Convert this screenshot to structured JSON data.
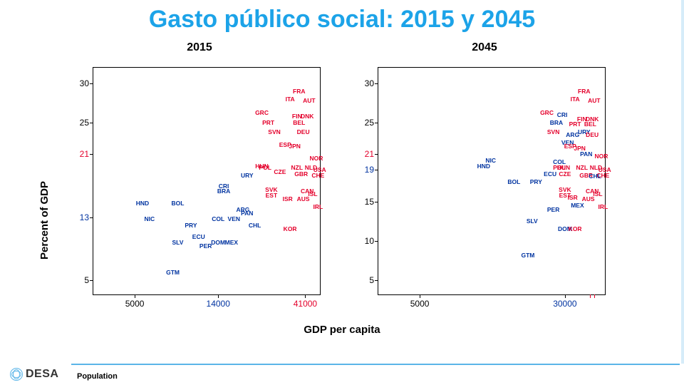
{
  "title": {
    "text": "Gasto público social: 2015 y 2045",
    "color": "#1ca3e8",
    "fontsize": 34
  },
  "axis": {
    "ylabel": "Percent of GDP",
    "xlabel": "GDP per capita",
    "ylabel_fontsize": 15,
    "xlabel_fontsize": 15
  },
  "colors": {
    "red": "#e4002b",
    "blue": "#0033a0",
    "border": "#000000",
    "accent": "#5bb5e8"
  },
  "panels": [
    {
      "title": "2015",
      "ylim": [
        3,
        32
      ],
      "xlim": [
        3000,
        50000
      ],
      "yticks": [
        {
          "v": 5,
          "label": "5",
          "color": "black"
        },
        {
          "v": 13,
          "label": "13",
          "color": "blue"
        },
        {
          "v": 21,
          "label": "21",
          "color": "red"
        },
        {
          "v": 25,
          "label": "25",
          "color": "black"
        },
        {
          "v": 30,
          "label": "30",
          "color": "black"
        }
      ],
      "xticks": [
        {
          "v": 5000,
          "label": "5000",
          "color": "black"
        },
        {
          "v": 14000,
          "label": "14000",
          "color": "blue"
        },
        {
          "v": 41000,
          "label": "41000",
          "color": "red"
        }
      ],
      "points": [
        {
          "l": "FRA",
          "x": 38000,
          "y": 29.0,
          "c": "red"
        },
        {
          "l": "ITA",
          "x": 34000,
          "y": 28.0,
          "c": "red"
        },
        {
          "l": "AUT",
          "x": 43000,
          "y": 27.8,
          "c": "red"
        },
        {
          "l": "GRC",
          "x": 24000,
          "y": 26.3,
          "c": "red"
        },
        {
          "l": "FIN",
          "x": 37000,
          "y": 25.8,
          "c": "red"
        },
        {
          "l": "DNK",
          "x": 42000,
          "y": 25.8,
          "c": "red"
        },
        {
          "l": "PRT",
          "x": 26000,
          "y": 25.0,
          "c": "red"
        },
        {
          "l": "BEL",
          "x": 38000,
          "y": 25.0,
          "c": "red"
        },
        {
          "l": "SVN",
          "x": 28000,
          "y": 23.8,
          "c": "red"
        },
        {
          "l": "DEU",
          "x": 40000,
          "y": 23.8,
          "c": "red"
        },
        {
          "l": "ESP",
          "x": 32000,
          "y": 22.2,
          "c": "red"
        },
        {
          "l": "JPN",
          "x": 36000,
          "y": 22.0,
          "c": "red"
        },
        {
          "l": "NOR",
          "x": 47000,
          "y": 20.5,
          "c": "red"
        },
        {
          "l": "HUN",
          "x": 24000,
          "y": 19.5,
          "c": "red"
        },
        {
          "l": "POL",
          "x": 25000,
          "y": 19.3,
          "c": "red"
        },
        {
          "l": "NZL",
          "x": 37000,
          "y": 19.3,
          "c": "red"
        },
        {
          "l": "NLD",
          "x": 44000,
          "y": 19.3,
          "c": "red"
        },
        {
          "l": "USA",
          "x": 49000,
          "y": 19.0,
          "c": "red"
        },
        {
          "l": "CZE",
          "x": 30000,
          "y": 18.8,
          "c": "red"
        },
        {
          "l": "GBR",
          "x": 39000,
          "y": 18.5,
          "c": "red"
        },
        {
          "l": "CHE",
          "x": 48000,
          "y": 18.3,
          "c": "red"
        },
        {
          "l": "URY",
          "x": 20000,
          "y": 18.3,
          "c": "blue"
        },
        {
          "l": "CRI",
          "x": 15000,
          "y": 17.0,
          "c": "blue"
        },
        {
          "l": "BRA",
          "x": 15000,
          "y": 16.3,
          "c": "blue"
        },
        {
          "l": "SVK",
          "x": 27000,
          "y": 16.5,
          "c": "red"
        },
        {
          "l": "EST",
          "x": 27000,
          "y": 15.8,
          "c": "red"
        },
        {
          "l": "CAN",
          "x": 42000,
          "y": 16.3,
          "c": "red"
        },
        {
          "l": "ISL",
          "x": 45000,
          "y": 16.0,
          "c": "red"
        },
        {
          "l": "ISR",
          "x": 33000,
          "y": 15.3,
          "c": "red"
        },
        {
          "l": "AUS",
          "x": 40000,
          "y": 15.3,
          "c": "red"
        },
        {
          "l": "HND",
          "x": 5500,
          "y": 14.8,
          "c": "blue"
        },
        {
          "l": "BOL",
          "x": 8500,
          "y": 14.8,
          "c": "blue"
        },
        {
          "l": "ARG",
          "x": 19000,
          "y": 14.0,
          "c": "blue"
        },
        {
          "l": "PAN",
          "x": 20000,
          "y": 13.5,
          "c": "blue"
        },
        {
          "l": "IRL",
          "x": 48000,
          "y": 14.3,
          "c": "red"
        },
        {
          "l": "NIC",
          "x": 6000,
          "y": 12.8,
          "c": "blue"
        },
        {
          "l": "COL",
          "x": 14000,
          "y": 12.8,
          "c": "blue"
        },
        {
          "l": "VEN",
          "x": 17000,
          "y": 12.8,
          "c": "blue"
        },
        {
          "l": "PRY",
          "x": 10000,
          "y": 12.0,
          "c": "blue"
        },
        {
          "l": "CHL",
          "x": 22000,
          "y": 12.0,
          "c": "blue"
        },
        {
          "l": "KOR",
          "x": 34000,
          "y": 11.5,
          "c": "red"
        },
        {
          "l": "ECU",
          "x": 11000,
          "y": 10.5,
          "c": "blue"
        },
        {
          "l": "SLV",
          "x": 8500,
          "y": 9.8,
          "c": "blue"
        },
        {
          "l": "DOM",
          "x": 14000,
          "y": 9.8,
          "c": "blue"
        },
        {
          "l": "MEX",
          "x": 16500,
          "y": 9.8,
          "c": "blue"
        },
        {
          "l": "PER",
          "x": 12000,
          "y": 9.3,
          "c": "blue"
        },
        {
          "l": "GTM",
          "x": 8000,
          "y": 6.0,
          "c": "blue"
        }
      ]
    },
    {
      "title": "2045",
      "ylim": [
        3,
        32
      ],
      "xlim": [
        3000,
        50000
      ],
      "yticks": [
        {
          "v": 5,
          "label": "5",
          "color": "black"
        },
        {
          "v": 10,
          "label": "10",
          "color": "black"
        },
        {
          "v": 15,
          "label": "15",
          "color": "black"
        },
        {
          "v": 19,
          "label": "19",
          "color": "blue"
        },
        {
          "v": 21,
          "label": "21",
          "color": "red"
        },
        {
          "v": 25,
          "label": "25",
          "color": "black"
        },
        {
          "v": 30,
          "label": "30",
          "color": "black"
        }
      ],
      "xticks": [
        {
          "v": 5000,
          "label": "5000",
          "color": "black"
        },
        {
          "v": 30000,
          "label": "30000",
          "color": "blue"
        }
      ],
      "xticks_extra_marks": [
        41000,
        43000
      ],
      "points": [
        {
          "l": "FRA",
          "x": 38000,
          "y": 29.0,
          "c": "red"
        },
        {
          "l": "ITA",
          "x": 34000,
          "y": 28.0,
          "c": "red"
        },
        {
          "l": "AUT",
          "x": 43000,
          "y": 27.8,
          "c": "red"
        },
        {
          "l": "GRC",
          "x": 24000,
          "y": 26.3,
          "c": "red"
        },
        {
          "l": "CRI",
          "x": 29000,
          "y": 26.0,
          "c": "blue"
        },
        {
          "l": "FIN",
          "x": 37000,
          "y": 25.5,
          "c": "red"
        },
        {
          "l": "DNK",
          "x": 42000,
          "y": 25.5,
          "c": "red"
        },
        {
          "l": "BRA",
          "x": 27000,
          "y": 25.0,
          "c": "blue"
        },
        {
          "l": "PRT",
          "x": 34000,
          "y": 24.8,
          "c": "red"
        },
        {
          "l": "BEL",
          "x": 41000,
          "y": 24.8,
          "c": "red"
        },
        {
          "l": "SVN",
          "x": 26000,
          "y": 23.8,
          "c": "red"
        },
        {
          "l": "URY",
          "x": 38000,
          "y": 23.8,
          "c": "blue"
        },
        {
          "l": "DEU",
          "x": 42000,
          "y": 23.5,
          "c": "red"
        },
        {
          "l": "ARG",
          "x": 33000,
          "y": 23.5,
          "c": "blue"
        },
        {
          "l": "VEN",
          "x": 31000,
          "y": 22.5,
          "c": "blue"
        },
        {
          "l": "ESP",
          "x": 32000,
          "y": 22.0,
          "c": "red"
        },
        {
          "l": "JPN",
          "x": 36000,
          "y": 21.8,
          "c": "red"
        },
        {
          "l": "PAN",
          "x": 39000,
          "y": 21.0,
          "c": "blue"
        },
        {
          "l": "NOR",
          "x": 47000,
          "y": 20.8,
          "c": "red"
        },
        {
          "l": "NIC",
          "x": 12000,
          "y": 20.2,
          "c": "blue"
        },
        {
          "l": "COL",
          "x": 28000,
          "y": 20.0,
          "c": "blue"
        },
        {
          "l": "HND",
          "x": 11000,
          "y": 19.5,
          "c": "blue"
        },
        {
          "l": "POL",
          "x": 28000,
          "y": 19.3,
          "c": "red"
        },
        {
          "l": "HUN",
          "x": 29500,
          "y": 19.3,
          "c": "red"
        },
        {
          "l": "NZL",
          "x": 37000,
          "y": 19.3,
          "c": "red"
        },
        {
          "l": "NLD",
          "x": 44000,
          "y": 19.3,
          "c": "red"
        },
        {
          "l": "USA",
          "x": 49000,
          "y": 19.0,
          "c": "red"
        },
        {
          "l": "ECU",
          "x": 25000,
          "y": 18.5,
          "c": "blue"
        },
        {
          "l": "CZE",
          "x": 30000,
          "y": 18.5,
          "c": "red"
        },
        {
          "l": "GBR",
          "x": 39000,
          "y": 18.3,
          "c": "red"
        },
        {
          "l": "CHE",
          "x": 48000,
          "y": 18.3,
          "c": "red"
        },
        {
          "l": "CHL",
          "x": 43500,
          "y": 18.2,
          "c": "blue"
        },
        {
          "l": "BOL",
          "x": 16000,
          "y": 17.5,
          "c": "blue"
        },
        {
          "l": "PRY",
          "x": 21000,
          "y": 17.5,
          "c": "blue"
        },
        {
          "l": "SVK",
          "x": 30000,
          "y": 16.5,
          "c": "red"
        },
        {
          "l": "CAN",
          "x": 42000,
          "y": 16.3,
          "c": "red"
        },
        {
          "l": "ISL",
          "x": 45000,
          "y": 16.0,
          "c": "red"
        },
        {
          "l": "EST",
          "x": 30000,
          "y": 15.8,
          "c": "red"
        },
        {
          "l": "ISR",
          "x": 33000,
          "y": 15.5,
          "c": "red"
        },
        {
          "l": "AUS",
          "x": 40000,
          "y": 15.3,
          "c": "red"
        },
        {
          "l": "MEX",
          "x": 35000,
          "y": 14.5,
          "c": "blue"
        },
        {
          "l": "PER",
          "x": 26000,
          "y": 14.0,
          "c": "blue"
        },
        {
          "l": "IRL",
          "x": 48000,
          "y": 14.3,
          "c": "red"
        },
        {
          "l": "SLV",
          "x": 20000,
          "y": 12.5,
          "c": "blue"
        },
        {
          "l": "DOM",
          "x": 30000,
          "y": 11.5,
          "c": "blue"
        },
        {
          "l": "KOR",
          "x": 34000,
          "y": 11.5,
          "c": "red"
        },
        {
          "l": "GTM",
          "x": 19000,
          "y": 8.2,
          "c": "blue"
        }
      ]
    }
  ],
  "footer": {
    "logo_text": "DESA",
    "label": "Population"
  }
}
